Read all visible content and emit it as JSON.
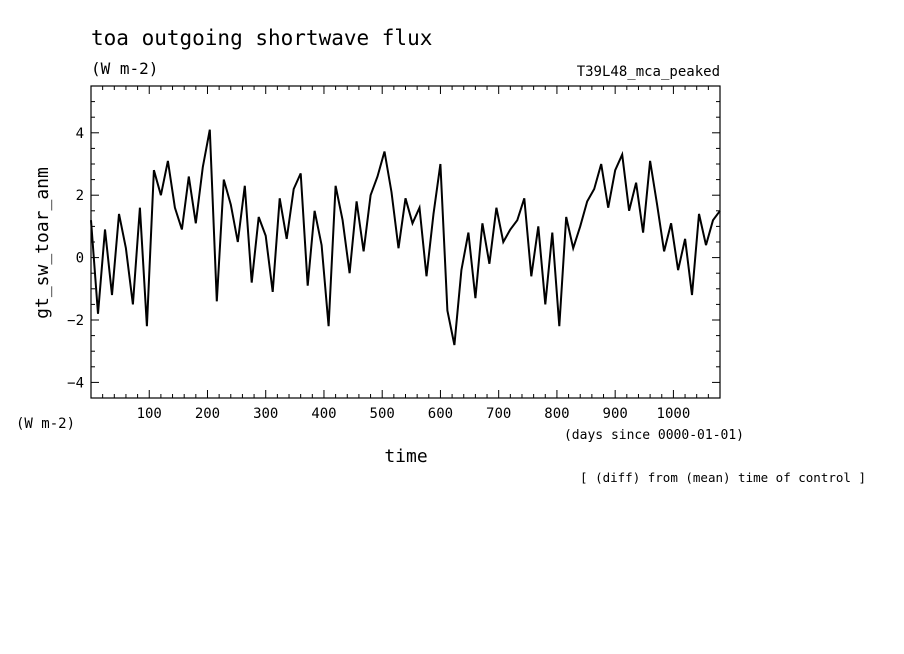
{
  "chart_data": {
    "type": "line",
    "title": "toa outgoing shortwave flux",
    "units_label": "(W m-2)",
    "experiment": "T39L48_mca_peaked",
    "ylabel": "gt_sw_toar_anm",
    "yunits": "(W m-2)",
    "xlabel": "time",
    "xunits": "(days since 0000-01-01)",
    "note": "[ (diff) from (mean) time of control ]",
    "xlim": [
      0,
      1080
    ],
    "ylim": [
      -4.5,
      5.5
    ],
    "xticks": [
      100,
      200,
      300,
      400,
      500,
      600,
      700,
      800,
      900,
      1000
    ],
    "yticks": [
      -4,
      -2,
      0,
      2,
      4
    ],
    "grid": false,
    "series": [
      {
        "x": [
          0,
          12,
          24,
          36,
          48,
          60,
          72,
          84,
          96,
          108,
          120,
          132,
          144,
          156,
          168,
          180,
          192,
          204,
          216,
          228,
          240,
          252,
          264,
          276,
          288,
          300,
          312,
          324,
          336,
          348,
          360,
          372,
          384,
          396,
          408,
          420,
          432,
          444,
          456,
          468,
          480,
          492,
          504,
          516,
          528,
          540,
          552,
          564,
          576,
          588,
          600,
          612,
          624,
          636,
          648,
          660,
          672,
          684,
          696,
          708,
          720,
          732,
          744,
          756,
          768,
          780,
          792,
          804,
          816,
          828,
          840,
          852,
          864,
          876,
          888,
          900,
          912,
          924,
          936,
          948,
          960,
          972,
          984,
          996,
          1008,
          1020,
          1032,
          1044,
          1056,
          1068,
          1080
        ],
        "values": [
          1.2,
          -1.8,
          0.9,
          -1.2,
          1.4,
          0.3,
          -1.5,
          1.6,
          -2.2,
          2.8,
          2.0,
          3.1,
          1.6,
          0.9,
          2.6,
          1.1,
          2.9,
          4.1,
          -1.4,
          2.5,
          1.7,
          0.5,
          2.3,
          -0.8,
          1.3,
          0.7,
          -1.1,
          1.9,
          0.6,
          2.2,
          2.7,
          -0.9,
          1.5,
          0.4,
          -2.2,
          2.3,
          1.2,
          -0.5,
          1.8,
          0.2,
          2.0,
          2.6,
          3.4,
          2.1,
          0.3,
          1.9,
          1.1,
          1.6,
          -0.6,
          1.4,
          3.0,
          -1.7,
          -2.8,
          -0.4,
          0.8,
          -1.3,
          1.1,
          -0.2,
          1.6,
          0.5,
          0.9,
          1.2,
          1.9,
          -0.6,
          1.0,
          -1.5,
          0.8,
          -2.2,
          1.3,
          0.3,
          1.0,
          1.8,
          2.2,
          3.0,
          1.6,
          2.8,
          3.3,
          1.5,
          2.4,
          0.8,
          3.1,
          1.7,
          0.2,
          1.1,
          -0.4,
          0.6,
          -1.2,
          1.4,
          0.4,
          1.2,
          1.5
        ]
      }
    ]
  }
}
